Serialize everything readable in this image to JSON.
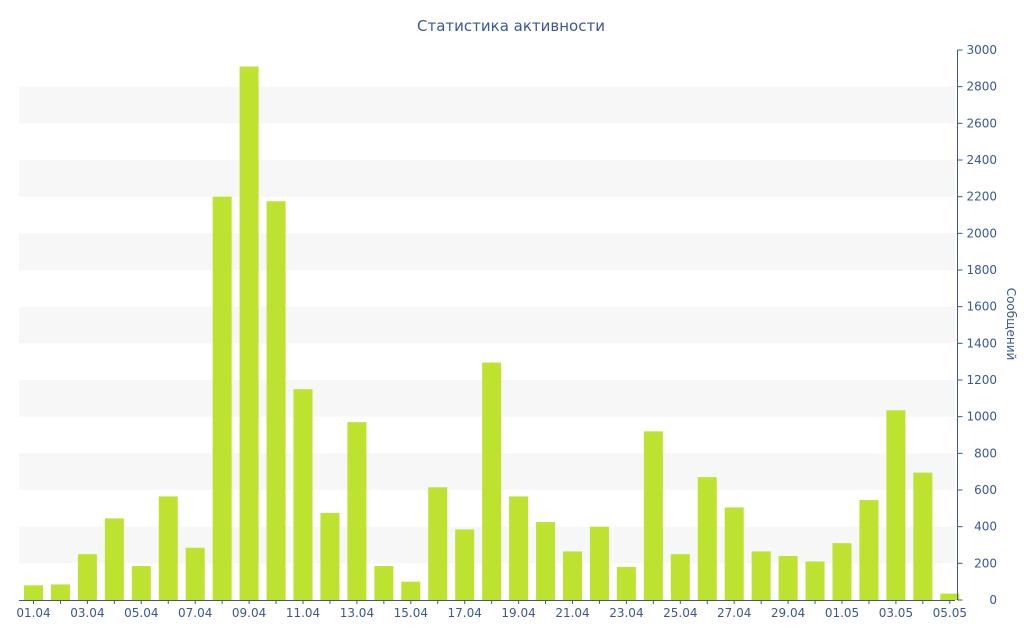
{
  "chart_data": {
    "type": "bar",
    "title": "Статистика активности",
    "xlabel": "",
    "ylabel": "Сообщений",
    "y_axis_side": "right",
    "ylim": [
      0,
      3000
    ],
    "yticks": [
      0,
      200,
      400,
      600,
      800,
      1000,
      1200,
      1400,
      1600,
      1800,
      2000,
      2200,
      2400,
      2600,
      2800,
      3000
    ],
    "grid": "alternating horizontal bands",
    "bar_color": "#bde22f",
    "text_color": "#3a5896",
    "categories": [
      "01.04",
      "02.04",
      "03.04",
      "04.04",
      "05.04",
      "06.04",
      "07.04",
      "08.04",
      "09.04",
      "10.04",
      "11.04",
      "12.04",
      "13.04",
      "14.04",
      "15.04",
      "16.04",
      "17.04",
      "18.04",
      "19.04",
      "20.04",
      "21.04",
      "22.04",
      "23.04",
      "24.04",
      "25.04",
      "26.04",
      "27.04",
      "28.04",
      "29.04",
      "30.04",
      "01.05",
      "02.05",
      "03.05",
      "04.05",
      "05.05"
    ],
    "xtick_labels": [
      "01.04",
      "03.04",
      "05.04",
      "07.04",
      "09.04",
      "11.04",
      "13.04",
      "15.04",
      "17.04",
      "19.04",
      "21.04",
      "23.04",
      "25.04",
      "27.04",
      "29.04",
      "01.05",
      "03.05",
      "05.05"
    ],
    "values": [
      80,
      85,
      250,
      445,
      185,
      565,
      285,
      2200,
      2910,
      2175,
      1150,
      475,
      970,
      185,
      100,
      615,
      385,
      1295,
      565,
      425,
      265,
      400,
      180,
      920,
      250,
      670,
      505,
      265,
      240,
      210,
      310,
      545,
      1035,
      695,
      35
    ]
  }
}
